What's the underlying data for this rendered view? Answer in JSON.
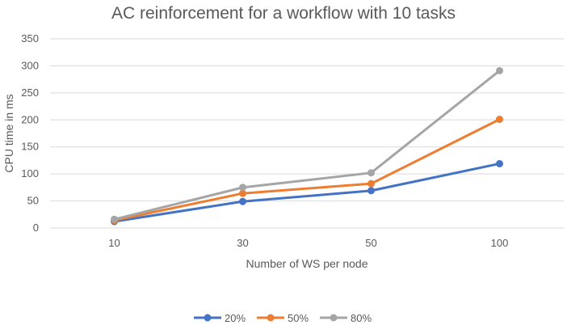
{
  "chart_data": {
    "type": "line",
    "title": "AC reinforcement for a workflow with 10 tasks",
    "xlabel": "Number of WS per node",
    "ylabel": "CPU time in ms",
    "categories": [
      "10",
      "30",
      "50",
      "100"
    ],
    "ylim": [
      0,
      350
    ],
    "yticks": [
      0,
      50,
      100,
      150,
      200,
      250,
      300,
      350
    ],
    "grid": true,
    "legend_position": "bottom",
    "series": [
      {
        "name": "20%",
        "color": "#4472C4",
        "values": [
          12,
          49,
          69,
          119
        ]
      },
      {
        "name": "50%",
        "color": "#ED7D31",
        "values": [
          14,
          64,
          82,
          201
        ]
      },
      {
        "name": "80%",
        "color": "#A5A5A5",
        "values": [
          16,
          75,
          102,
          291
        ]
      }
    ]
  }
}
